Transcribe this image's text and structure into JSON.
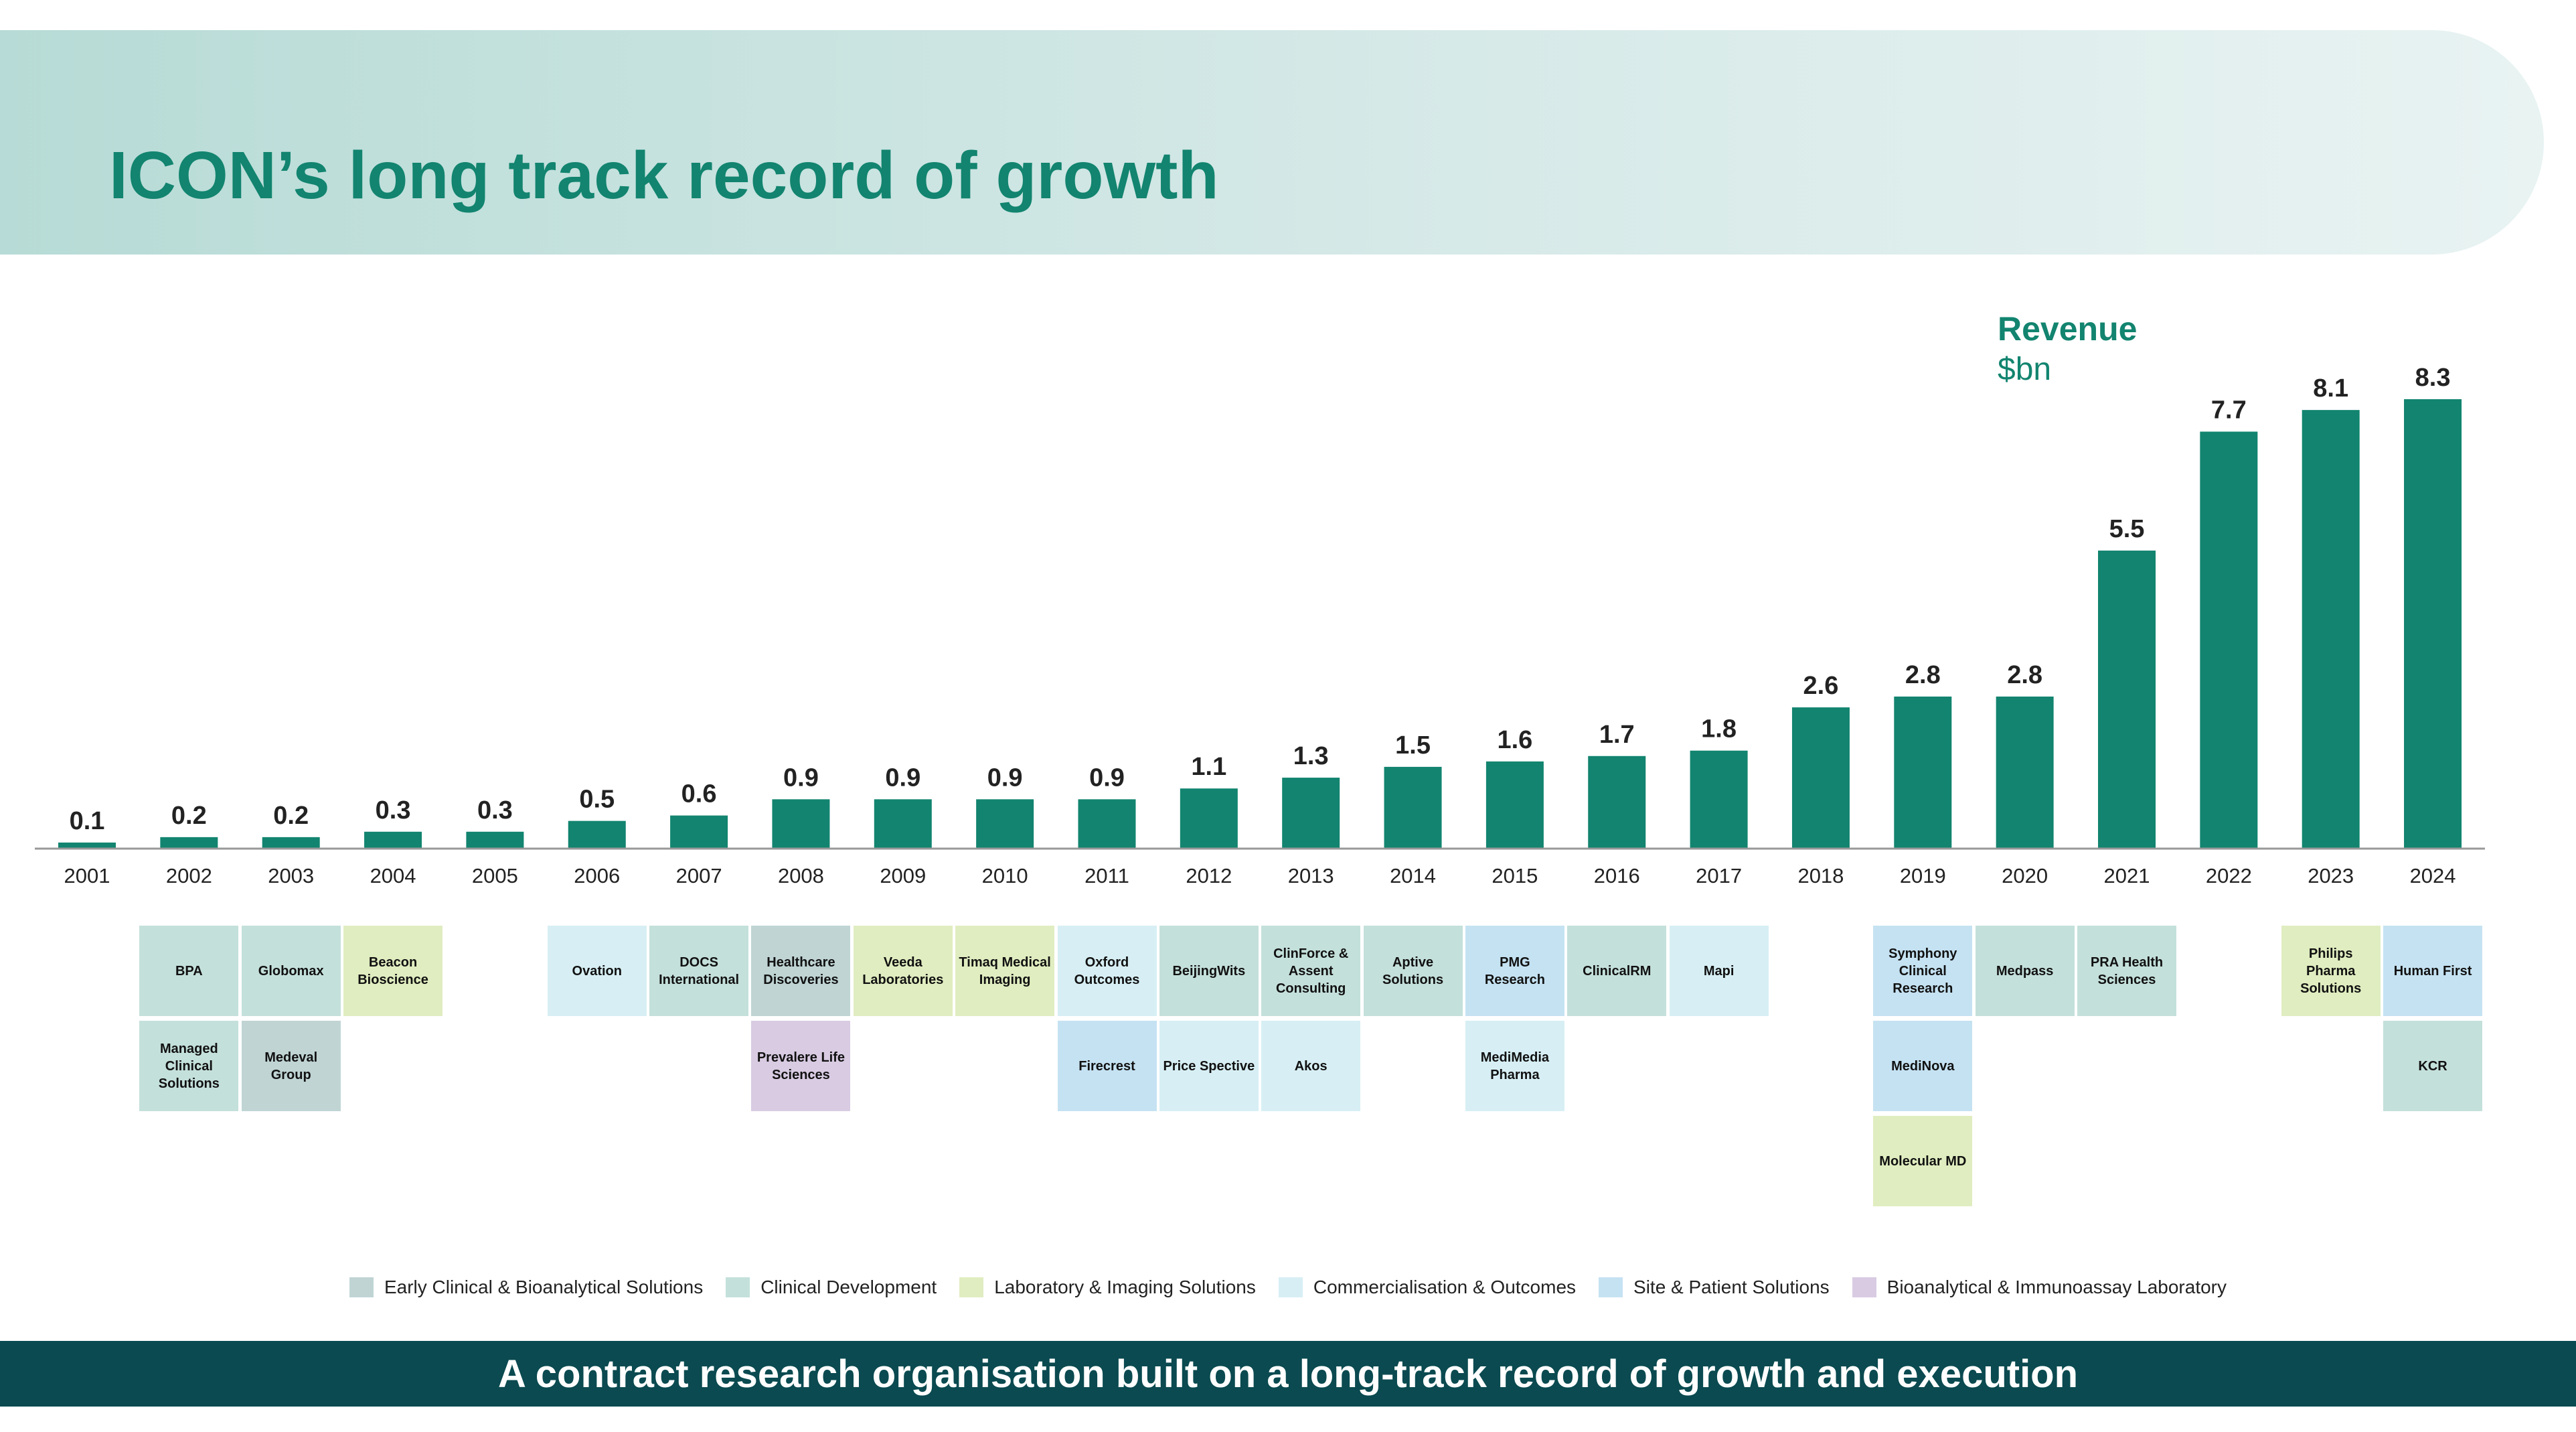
{
  "header": {
    "title": "ICON’s long track record of growth"
  },
  "footer": {
    "text": "A contract research organisation built on a long-track record of growth and execution"
  },
  "colors": {
    "bar": "#12846f",
    "title": "#12846f",
    "footer_bg": "#0a4a50"
  },
  "categories": [
    {
      "key": "ec",
      "label": "Early Clinical & Bioanalytical Solutions",
      "color": "#c0d4d4"
    },
    {
      "key": "cd",
      "label": "Clinical Development",
      "color": "#c4e0db"
    },
    {
      "key": "lab",
      "label": "Laboratory & Imaging Solutions",
      "color": "#e0edc0"
    },
    {
      "key": "co",
      "label": "Commercialisation & Outcomes",
      "color": "#d7eff4"
    },
    {
      "key": "sp",
      "label": "Site & Patient Solutions",
      "color": "#c5e2f2"
    },
    {
      "key": "bio",
      "label": "Bioanalytical & Immunoassay Laboratory",
      "color": "#d8cbe2"
    }
  ],
  "chart_data": {
    "type": "bar",
    "title": "",
    "ylabel": "Revenue",
    "yunit": "$bn",
    "categories": [
      "2001",
      "2002",
      "2003",
      "2004",
      "2005",
      "2006",
      "2007",
      "2008",
      "2009",
      "2010",
      "2011",
      "2012",
      "2013",
      "2014",
      "2015",
      "2016",
      "2017",
      "2018",
      "2019",
      "2020",
      "2021",
      "2022",
      "2023",
      "2024"
    ],
    "values": [
      0.1,
      0.2,
      0.2,
      0.3,
      0.3,
      0.5,
      0.6,
      0.9,
      0.9,
      0.9,
      0.9,
      1.1,
      1.3,
      1.5,
      1.6,
      1.7,
      1.8,
      2.6,
      2.8,
      2.8,
      5.5,
      7.7,
      8.1,
      8.3
    ],
    "ylim": [
      0,
      8.3
    ],
    "grid": false,
    "legend": "bottom"
  },
  "acquisitions": {
    "2002": [
      {
        "name": "BPA",
        "cat": "cd"
      },
      {
        "name": "Managed Clinical Solutions",
        "cat": "cd"
      }
    ],
    "2003": [
      {
        "name": "Globomax",
        "cat": "cd"
      },
      {
        "name": "Medeval Group",
        "cat": "ec"
      }
    ],
    "2004": [
      {
        "name": "Beacon Bioscience",
        "cat": "lab"
      }
    ],
    "2006": [
      {
        "name": "Ovation",
        "cat": "co"
      }
    ],
    "2007": [
      {
        "name": "DOCS International",
        "cat": "cd"
      }
    ],
    "2008": [
      {
        "name": "Healthcare Discoveries",
        "cat": "ec"
      },
      {
        "name": "Prevalere Life Sciences",
        "cat": "bio"
      }
    ],
    "2009": [
      {
        "name": "Veeda Laboratories",
        "cat": "lab"
      }
    ],
    "2010": [
      {
        "name": "Timaq Medical Imaging",
        "cat": "lab"
      }
    ],
    "2011": [
      {
        "name": "Oxford Outcomes",
        "cat": "co"
      },
      {
        "name": "Firecrest",
        "cat": "sp"
      }
    ],
    "2012": [
      {
        "name": "BeijingWits",
        "cat": "cd"
      },
      {
        "name": "Price Spective",
        "cat": "co"
      }
    ],
    "2013": [
      {
        "name": "ClinForce & Assent Consulting",
        "cat": "cd"
      },
      {
        "name": "Akos",
        "cat": "co"
      }
    ],
    "2014": [
      {
        "name": "Aptive Solutions",
        "cat": "cd"
      }
    ],
    "2015": [
      {
        "name": "PMG Research",
        "cat": "sp"
      },
      {
        "name": "MediMedia Pharma",
        "cat": "co"
      }
    ],
    "2016": [
      {
        "name": "ClinicalRM",
        "cat": "cd"
      }
    ],
    "2017": [
      {
        "name": "Mapi",
        "cat": "co"
      }
    ],
    "2019": [
      {
        "name": "Symphony Clinical Research",
        "cat": "sp"
      },
      {
        "name": "MediNova",
        "cat": "sp"
      },
      {
        "name": "Molecular MD",
        "cat": "lab"
      }
    ],
    "2020": [
      {
        "name": "Medpass",
        "cat": "cd"
      }
    ],
    "2021": [
      {
        "name": "PRA Health Sciences",
        "cat": "cd"
      }
    ],
    "2023": [
      {
        "name": "Philips Pharma Solutions",
        "cat": "lab"
      }
    ],
    "2024": [
      {
        "name": "Human First",
        "cat": "sp"
      },
      {
        "name": "KCR",
        "cat": "cd"
      }
    ]
  }
}
